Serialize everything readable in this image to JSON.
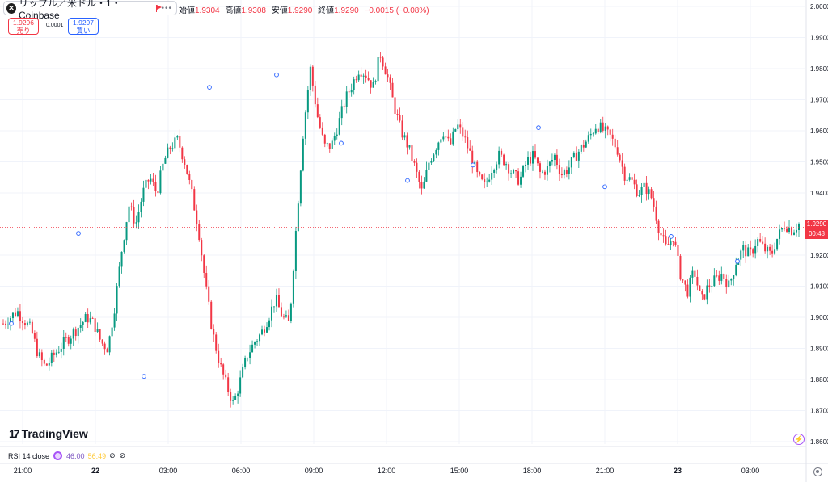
{
  "symbol": {
    "title": "リップル／米ドル・1・Coinbase",
    "logo_glyph": "✕",
    "more": "•••"
  },
  "ohlc": {
    "open_label": "始値",
    "open": "1.9304",
    "high_label": "高値",
    "high": "1.9308",
    "low_label": "安値",
    "low": "1.9290",
    "close_label": "終値",
    "close": "1.9290",
    "change": "−0.0015 (−0.08%)"
  },
  "trade": {
    "sell_price": "1.9296",
    "sell_label": "売り",
    "spread": "0.0001",
    "buy_price": "1.9297",
    "buy_label": "買い"
  },
  "last_price": {
    "price": "1.9290",
    "countdown": "00:48"
  },
  "indicator": {
    "name": "RSI 14 close",
    "value1": "46.00",
    "value2": "56.49",
    "eye_icon": "⊘"
  },
  "branding": {
    "name": "TradingView",
    "mark": "17"
  },
  "colors": {
    "up": "#089981",
    "down": "#f23645",
    "grid": "#f0f3fa",
    "axis_text": "#131722",
    "marker": "#2962ff"
  },
  "chart_data": {
    "type": "candlestick",
    "title": "",
    "xlabel": "",
    "ylabel": "",
    "ylim": [
      1.855,
      2.0
    ],
    "y_ticks": [
      "2.0000",
      "1.9900",
      "1.9800",
      "1.9700",
      "1.9600",
      "1.9500",
      "1.9400",
      "1.9300",
      "1.9200",
      "1.9100",
      "1.9000",
      "1.8900",
      "1.8800",
      "1.8700",
      "1.8600"
    ],
    "x_ticks": [
      "21:00",
      "22",
      "03:00",
      "06:00",
      "09:00",
      "12:00",
      "15:00",
      "18:00",
      "21:00",
      "23",
      "03:00"
    ],
    "current_price": 1.929,
    "price_path": [
      [
        0,
        1.898
      ],
      [
        2,
        1.902
      ],
      [
        4,
        1.896
      ],
      [
        5,
        1.888
      ],
      [
        6,
        1.884
      ],
      [
        8,
        1.89
      ],
      [
        10,
        1.895
      ],
      [
        12,
        1.9
      ],
      [
        13,
        1.898
      ],
      [
        14,
        1.892
      ],
      [
        15,
        1.89
      ],
      [
        16,
        1.904
      ],
      [
        17,
        1.922
      ],
      [
        18,
        1.936
      ],
      [
        19,
        1.93
      ],
      [
        20,
        1.94
      ],
      [
        21,
        1.945
      ],
      [
        22,
        1.94
      ],
      [
        23,
        1.95
      ],
      [
        24,
        1.955
      ],
      [
        25,
        1.957
      ],
      [
        26,
        1.95
      ],
      [
        27,
        1.94
      ],
      [
        28,
        1.928
      ],
      [
        29,
        1.91
      ],
      [
        30,
        1.895
      ],
      [
        31,
        1.885
      ],
      [
        32,
        1.878
      ],
      [
        33,
        1.872
      ],
      [
        34,
        1.88
      ],
      [
        35,
        1.888
      ],
      [
        36,
        1.892
      ],
      [
        37,
        1.895
      ],
      [
        38,
        1.9
      ],
      [
        39,
        1.906
      ],
      [
        40,
        1.9
      ],
      [
        41,
        1.898
      ],
      [
        42,
        1.93
      ],
      [
        43,
        1.96
      ],
      [
        44,
        1.98
      ],
      [
        45,
        1.965
      ],
      [
        46,
        1.955
      ],
      [
        47,
        1.955
      ],
      [
        48,
        1.962
      ],
      [
        49,
        1.97
      ],
      [
        50,
        1.975
      ],
      [
        51,
        1.98
      ],
      [
        52,
        1.978
      ],
      [
        53,
        1.974
      ],
      [
        54,
        1.985
      ],
      [
        55,
        1.978
      ],
      [
        56,
        1.968
      ],
      [
        57,
        1.96
      ],
      [
        58,
        1.955
      ],
      [
        59,
        1.948
      ],
      [
        60,
        1.94
      ],
      [
        61,
        1.95
      ],
      [
        62,
        1.955
      ],
      [
        63,
        1.96
      ],
      [
        64,
        1.955
      ],
      [
        65,
        1.962
      ],
      [
        66,
        1.958
      ],
      [
        67,
        1.952
      ],
      [
        68,
        1.945
      ],
      [
        69,
        1.942
      ],
      [
        70,
        1.948
      ],
      [
        71,
        1.952
      ],
      [
        72,
        1.95
      ],
      [
        73,
        1.946
      ],
      [
        74,
        1.944
      ],
      [
        75,
        1.95
      ],
      [
        76,
        1.952
      ],
      [
        77,
        1.946
      ],
      [
        78,
        1.948
      ],
      [
        79,
        1.952
      ],
      [
        80,
        1.946
      ],
      [
        81,
        1.948
      ],
      [
        82,
        1.952
      ],
      [
        83,
        1.955
      ],
      [
        84,
        1.958
      ],
      [
        85,
        1.962
      ],
      [
        86,
        1.96
      ],
      [
        87,
        1.958
      ],
      [
        88,
        1.954
      ],
      [
        89,
        1.946
      ],
      [
        90,
        1.944
      ],
      [
        91,
        1.94
      ],
      [
        92,
        1.942
      ],
      [
        93,
        1.938
      ],
      [
        94,
        1.928
      ],
      [
        95,
        1.922
      ],
      [
        96,
        1.926
      ],
      [
        97,
        1.914
      ],
      [
        98,
        1.908
      ],
      [
        99,
        1.915
      ],
      [
        100,
        1.905
      ],
      [
        101,
        1.91
      ],
      [
        102,
        1.912
      ],
      [
        103,
        1.914
      ],
      [
        104,
        1.91
      ],
      [
        105,
        1.918
      ],
      [
        106,
        1.922
      ],
      [
        107,
        1.92
      ],
      [
        108,
        1.925
      ],
      [
        109,
        1.922
      ],
      [
        110,
        1.92
      ],
      [
        111,
        1.926
      ],
      [
        112,
        1.93
      ],
      [
        113,
        1.928
      ],
      [
        114,
        1.93
      ]
    ],
    "markers": [
      1.898,
      1.927,
      1.881,
      1.974,
      1.978,
      1.956,
      1.944,
      1.949,
      1.961,
      1.942,
      1.926,
      1.918
    ]
  }
}
